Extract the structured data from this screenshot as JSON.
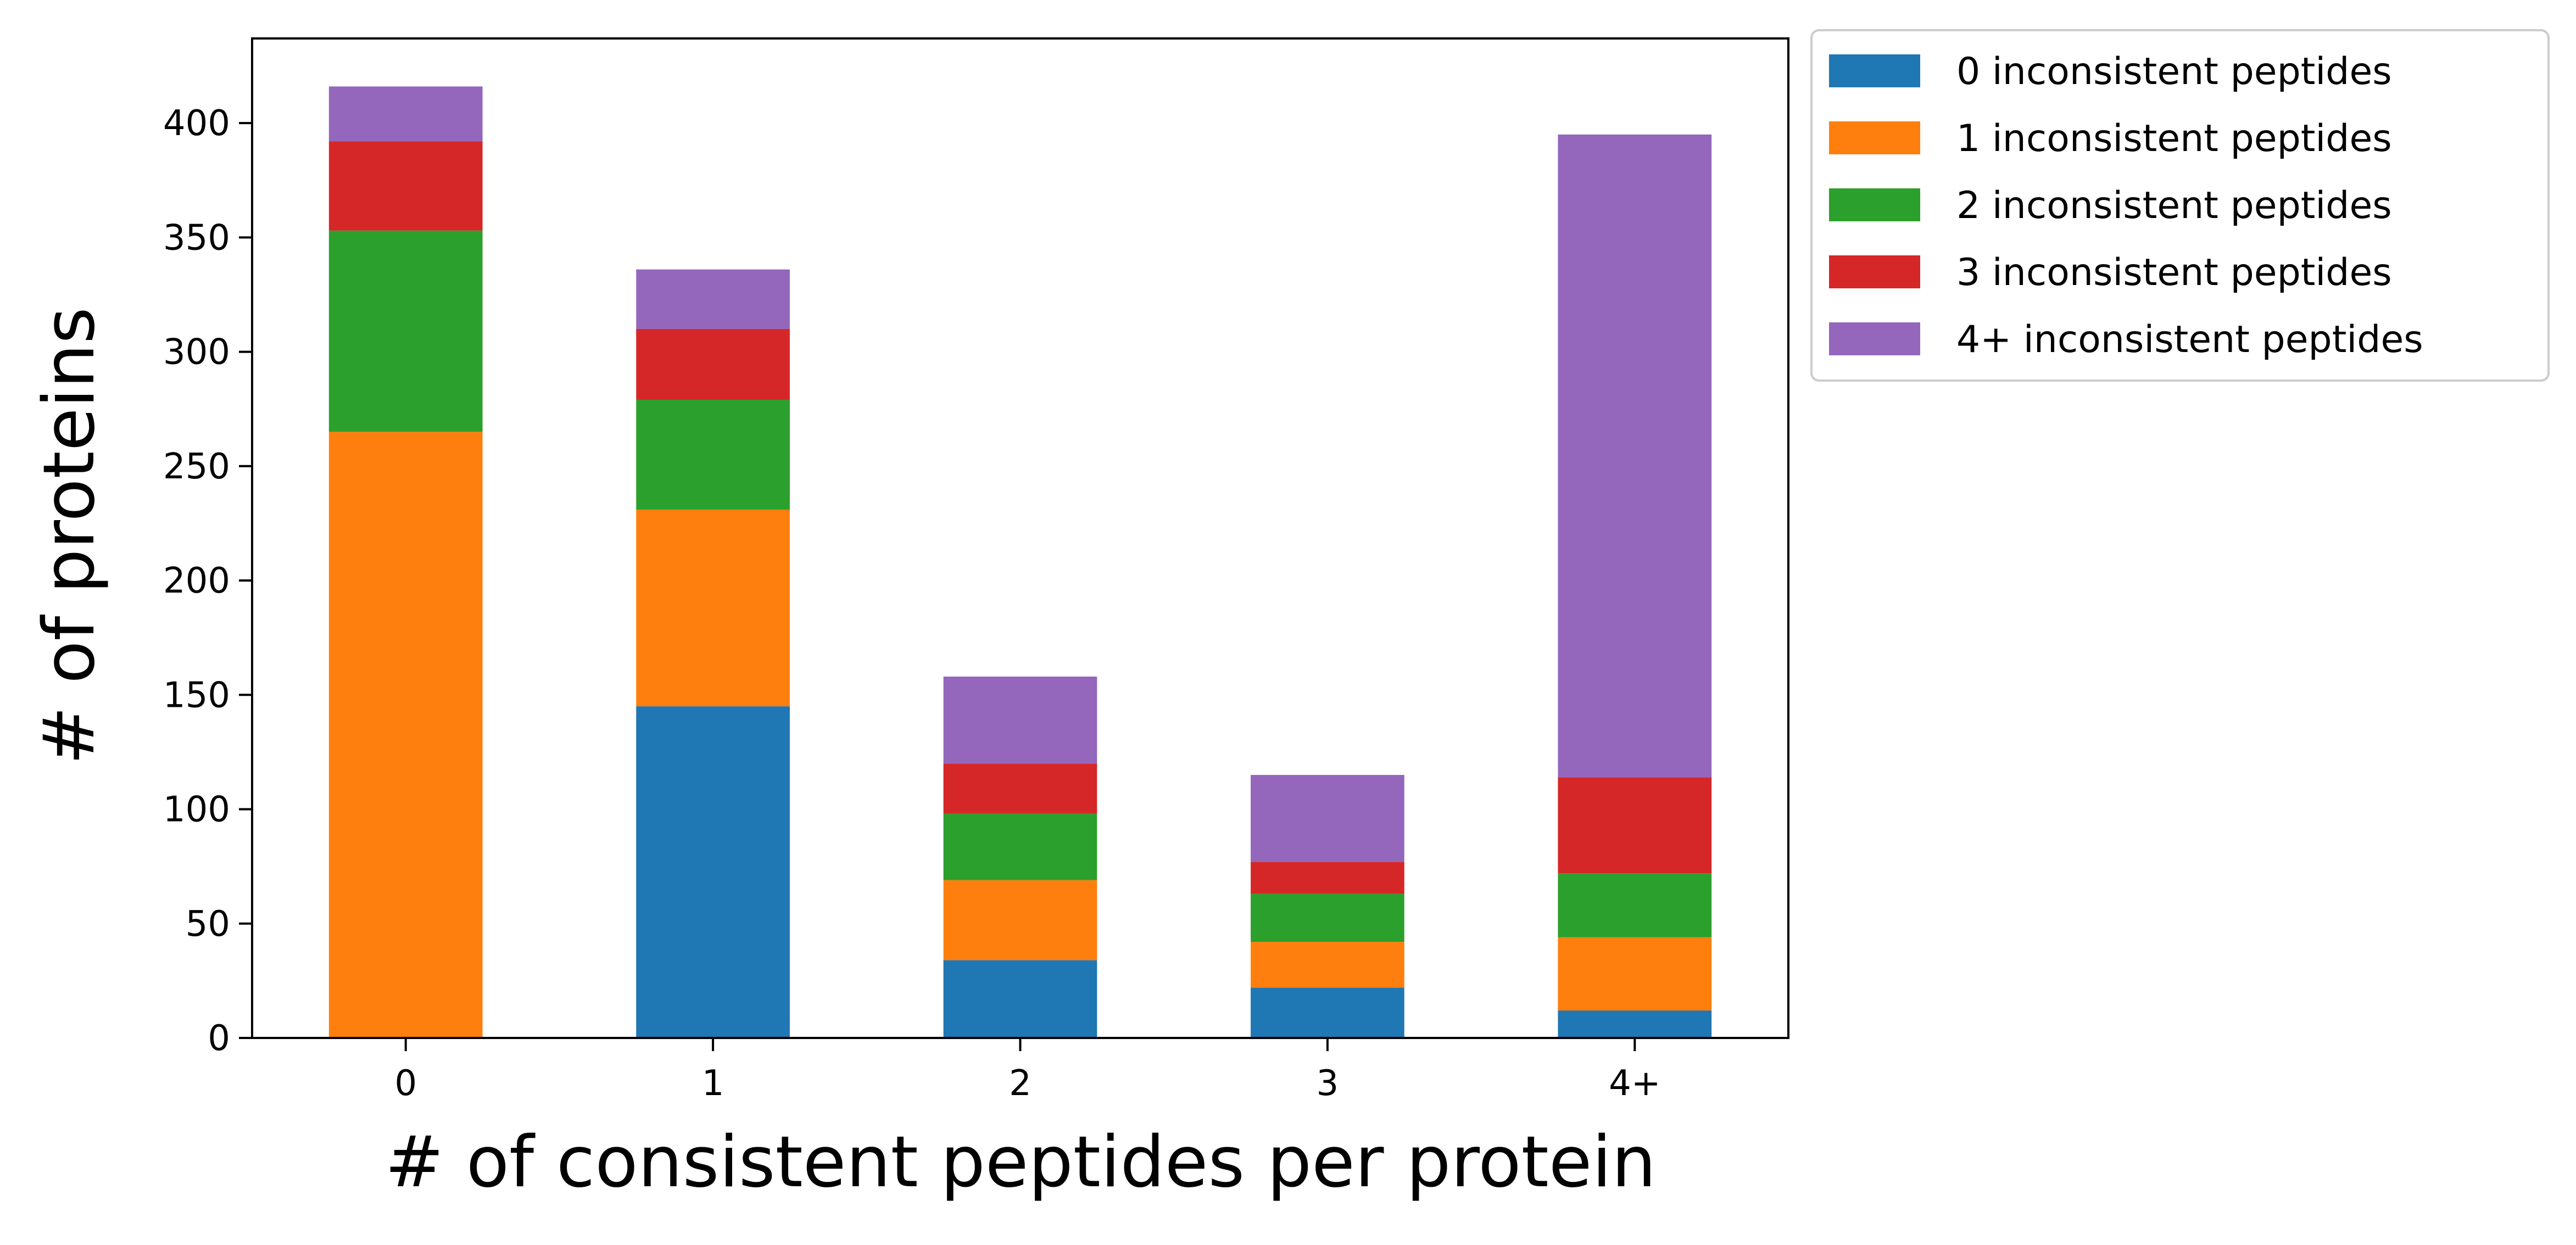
{
  "chart_data": {
    "type": "bar",
    "stacked": true,
    "categories": [
      "0",
      "1",
      "2",
      "3",
      "4+"
    ],
    "xlabel": "# of consistent peptides per protein",
    "ylabel": "# of proteins",
    "ylim": [
      0,
      437
    ],
    "yticks": [
      0,
      50,
      100,
      150,
      200,
      250,
      300,
      350,
      400
    ],
    "grid": false,
    "legend_position": "outside-top-right",
    "series": [
      {
        "name": "0 inconsistent peptides",
        "color": "#1f77b4",
        "values": [
          0,
          145,
          34,
          22,
          12
        ]
      },
      {
        "name": "1 inconsistent peptides",
        "color": "#ff7f0e",
        "values": [
          265,
          86,
          35,
          20,
          32
        ]
      },
      {
        "name": "2 inconsistent peptides",
        "color": "#2ca02c",
        "values": [
          88,
          48,
          29,
          21,
          28
        ]
      },
      {
        "name": "3 inconsistent peptides",
        "color": "#d62728",
        "values": [
          39,
          31,
          22,
          14,
          42
        ]
      },
      {
        "name": "4+ inconsistent peptides",
        "color": "#9467bd",
        "values": [
          24,
          26,
          38,
          38,
          281
        ]
      }
    ]
  }
}
